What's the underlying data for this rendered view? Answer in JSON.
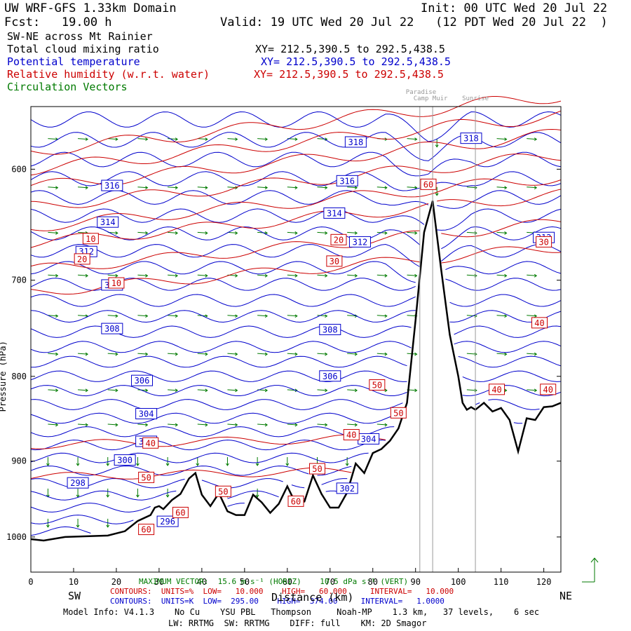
{
  "header": {
    "domain": "UW WRF-GFS 1.33km Domain",
    "init": "Init: 00 UTC Wed 20 Jul 22",
    "fcst": "Fcst:   19.00 h",
    "valid": "Valid: 19 UTC Wed 20 Jul 22   (12 PDT Wed 20 Jul 22  )"
  },
  "legend": {
    "cross_section": "SW-NE across Mt Rainier",
    "cloud": "Total cloud mixing ratio",
    "cloud_xy": "XY= 212.5,390.5 to 292.5,438.5",
    "theta": "Potential temperature",
    "theta_xy": "XY= 212.5,390.5 to 292.5,438.5",
    "rh": "Relative humidity (w.r.t. water)",
    "rh_xy": "XY= 212.5,390.5 to 292.5,438.5",
    "vectors": "Circulation Vectors"
  },
  "colors": {
    "theta": "#0000cc",
    "rh": "#cc0000",
    "vectors": "#007a00",
    "terrain": "#000000",
    "marker": "#999999"
  },
  "footer": {
    "max_vector": "MAXIMUM VECTOR:  15.6 m s⁻¹ (HORIZ)    10.5 dPa s⁻¹ (VERT)",
    "rh_contours": "CONTOURS:  UNITS=%  LOW=   10.000    HIGH=   60.000     INTERVAL=   10.000",
    "theta_contours": "CONTOURS:  UNITS=K  LOW=  295.00    HIGH=  374.00     INTERVAL=   1.0000",
    "sw": "SW",
    "ne": "NE",
    "xlabel": "Distance (km)",
    "model_info": "Model Info: V4.1.3    No Cu    YSU PBL   Thompson     Noah-MP    1.3 km,   37 levels,    6 sec",
    "model_info2": "LW: RRTMG  SW: RRTMG    DIFF: full    KM: 2D Smagor"
  },
  "chart_data": {
    "type": "cross-section",
    "x_ticks": [
      0,
      10,
      20,
      30,
      40,
      50,
      60,
      70,
      80,
      90,
      100,
      110,
      120
    ],
    "x_tick_labels": [
      "0",
      "10",
      "20",
      "30",
      "40",
      "50",
      "60",
      "70",
      "80",
      "90",
      "100",
      "110",
      "120"
    ],
    "y_ticks": [
      600,
      700,
      800,
      900,
      1000
    ],
    "y_tick_labels": [
      "600",
      "700",
      "800",
      "900",
      "1000"
    ],
    "xlim": [
      0,
      124
    ],
    "ylim": [
      550,
      1050
    ],
    "y_scale": "log",
    "ylabel": "Pressure (hPa)",
    "grid": false,
    "landmarks": [
      {
        "name": "Paradise",
        "x": 91
      },
      {
        "name": "Camp Muir",
        "x": 94
      },
      {
        "name": "Sunrise",
        "x": 104
      }
    ],
    "terrain": {
      "x": [
        0,
        3,
        8,
        13,
        18,
        22,
        25,
        28,
        29,
        30,
        31,
        33,
        35,
        37,
        38.5,
        40,
        42,
        44,
        46,
        48,
        50,
        52,
        54,
        56,
        58,
        60,
        62,
        64,
        66,
        68,
        70,
        72,
        74,
        76,
        78,
        80,
        82,
        84,
        86,
        88,
        90,
        92,
        94,
        96,
        98,
        100,
        101,
        102,
        103,
        104,
        106,
        108,
        110,
        112,
        114,
        116,
        118,
        120,
        122,
        124
      ],
      "p": [
        1003,
        1005,
        1000,
        999,
        998,
        992,
        978,
        970,
        960,
        958,
        962,
        950,
        942,
        922,
        915,
        943,
        958,
        941,
        965,
        970,
        970,
        943,
        953,
        967,
        955,
        932,
        955,
        952,
        918,
        942,
        960,
        960,
        940,
        903,
        915,
        890,
        885,
        875,
        860,
        830,
        740,
        655,
        627,
        690,
        755,
        800,
        830,
        838,
        835,
        838,
        830,
        840,
        836,
        850,
        888,
        848,
        850,
        835,
        834,
        830
      ]
    },
    "theta_labels": [
      {
        "v": "318",
        "x": 76,
        "p": 578
      },
      {
        "v": "318",
        "x": 103,
        "p": 575
      },
      {
        "v": "316",
        "x": 19,
        "p": 614
      },
      {
        "v": "316",
        "x": 74,
        "p": 610
      },
      {
        "v": "314",
        "x": 18,
        "p": 646
      },
      {
        "v": "314",
        "x": 71,
        "p": 638
      },
      {
        "v": "312",
        "x": 13,
        "p": 673
      },
      {
        "v": "312",
        "x": 77,
        "p": 664
      },
      {
        "v": "312",
        "x": 120,
        "p": 660
      },
      {
        "v": "310",
        "x": 19,
        "p": 705
      },
      {
        "v": "308",
        "x": 19,
        "p": 749
      },
      {
        "v": "308",
        "x": 70,
        "p": 750
      },
      {
        "v": "306",
        "x": 26,
        "p": 805
      },
      {
        "v": "306",
        "x": 70,
        "p": 800
      },
      {
        "v": "304",
        "x": 27,
        "p": 843
      },
      {
        "v": "304",
        "x": 79,
        "p": 873
      },
      {
        "v": "302",
        "x": 27,
        "p": 876
      },
      {
        "v": "302",
        "x": 74,
        "p": 935
      },
      {
        "v": "300",
        "x": 22,
        "p": 899
      },
      {
        "v": "298",
        "x": 11,
        "p": 928
      },
      {
        "v": "296",
        "x": 32,
        "p": 979
      }
    ],
    "rh_labels": [
      {
        "v": "10",
        "x": 14,
        "p": 661
      },
      {
        "v": "10",
        "x": 20,
        "p": 703
      },
      {
        "v": "20",
        "x": 12,
        "p": 680
      },
      {
        "v": "20",
        "x": 72,
        "p": 662
      },
      {
        "v": "30",
        "x": 71,
        "p": 682
      },
      {
        "v": "30",
        "x": 120,
        "p": 664
      },
      {
        "v": "40",
        "x": 28,
        "p": 878
      },
      {
        "v": "40",
        "x": 75,
        "p": 868
      },
      {
        "v": "40",
        "x": 119,
        "p": 743
      },
      {
        "v": "40",
        "x": 109,
        "p": 815
      },
      {
        "v": "40",
        "x": 121,
        "p": 815
      },
      {
        "v": "50",
        "x": 27,
        "p": 921
      },
      {
        "v": "50",
        "x": 81,
        "p": 810
      },
      {
        "v": "50",
        "x": 86,
        "p": 842
      },
      {
        "v": "50",
        "x": 67,
        "p": 910
      },
      {
        "v": "50",
        "x": 45,
        "p": 939
      },
      {
        "v": "60",
        "x": 35,
        "p": 967
      },
      {
        "v": "60",
        "x": 27,
        "p": 990
      },
      {
        "v": "60",
        "x": 62,
        "p": 952
      },
      {
        "v": "60",
        "x": 93,
        "p": 613
      }
    ]
  }
}
